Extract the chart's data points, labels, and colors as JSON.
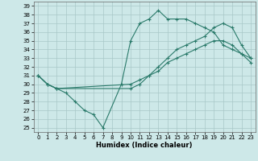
{
  "xlabel": "Humidex (Indice chaleur)",
  "bg_color": "#cde8e8",
  "grid_color": "#a8c8c8",
  "line_color": "#2a7a6a",
  "xlim": [
    -0.5,
    23.5
  ],
  "ylim": [
    24.5,
    39.5
  ],
  "yticks": [
    25,
    26,
    27,
    28,
    29,
    30,
    31,
    32,
    33,
    34,
    35,
    36,
    37,
    38,
    39
  ],
  "xticks": [
    0,
    1,
    2,
    3,
    4,
    5,
    6,
    7,
    8,
    9,
    10,
    11,
    12,
    13,
    14,
    15,
    16,
    17,
    18,
    19,
    20,
    21,
    22,
    23
  ],
  "curve1_x": [
    0,
    1,
    2,
    3,
    4,
    5,
    6,
    7,
    9,
    10,
    11,
    12,
    13,
    14,
    15,
    16,
    17,
    18,
    19,
    20,
    21,
    22,
    23
  ],
  "curve1_y": [
    31.0,
    30.0,
    29.5,
    29.0,
    28.0,
    27.0,
    26.5,
    25.0,
    30.0,
    35.0,
    37.0,
    37.5,
    38.5,
    37.5,
    37.5,
    37.5,
    37.0,
    36.5,
    36.0,
    34.5,
    34.0,
    33.5,
    33.0
  ],
  "curve2_x": [
    0,
    1,
    2,
    10,
    11,
    12,
    13,
    14,
    15,
    16,
    17,
    18,
    19,
    20,
    21,
    22,
    23
  ],
  "curve2_y": [
    31.0,
    30.0,
    29.5,
    30.0,
    30.5,
    31.0,
    31.5,
    32.5,
    33.0,
    33.5,
    34.0,
    34.5,
    35.0,
    35.0,
    34.5,
    33.5,
    32.5
  ],
  "curve3_x": [
    0,
    1,
    2,
    10,
    11,
    12,
    13,
    14,
    15,
    16,
    17,
    18,
    19,
    20,
    21,
    22,
    23
  ],
  "curve3_y": [
    31.0,
    30.0,
    29.5,
    29.5,
    30.0,
    31.0,
    32.0,
    33.0,
    34.0,
    34.5,
    35.0,
    35.5,
    36.5,
    37.0,
    36.5,
    34.5,
    33.0
  ],
  "xlabel_fontsize": 6,
  "tick_fontsize": 5
}
